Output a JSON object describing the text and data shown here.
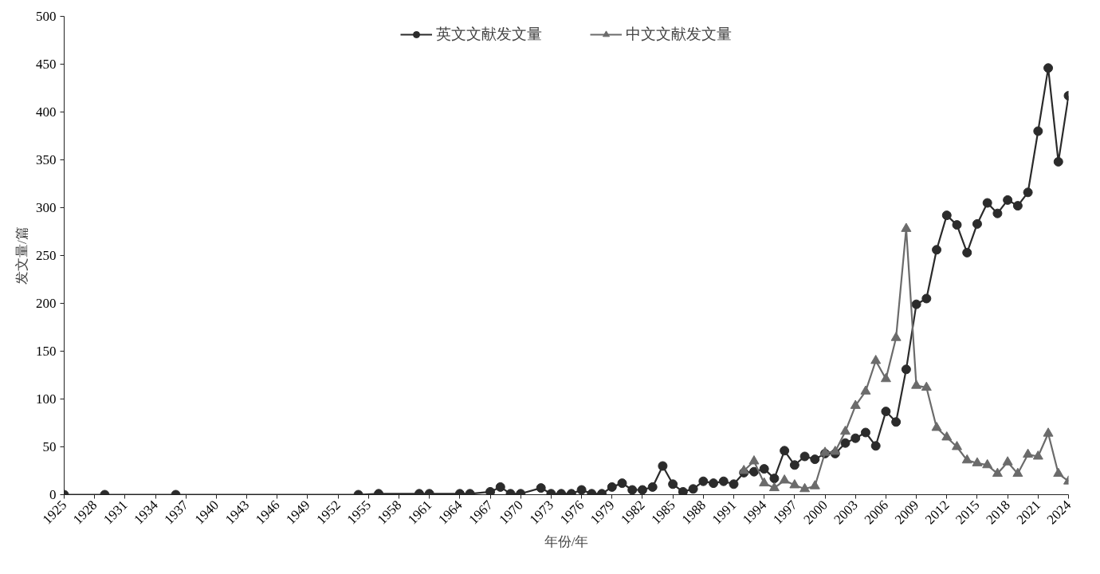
{
  "chart_data": {
    "type": "line",
    "xlabel": "年份/年",
    "ylabel": "发文量/篇",
    "xlim": [
      1925,
      2024
    ],
    "ylim": [
      0,
      500
    ],
    "xticks": [
      1925,
      1928,
      1931,
      1934,
      1937,
      1940,
      1943,
      1946,
      1949,
      1952,
      1955,
      1958,
      1961,
      1964,
      1967,
      1970,
      1973,
      1976,
      1979,
      1982,
      1985,
      1988,
      1991,
      1994,
      1997,
      2000,
      2003,
      2006,
      2009,
      2012,
      2015,
      2018,
      2021,
      2024
    ],
    "yticks": [
      0,
      50,
      100,
      150,
      200,
      250,
      300,
      350,
      400,
      450,
      500
    ],
    "grid": false,
    "legend": "top",
    "line_style": "solid",
    "series": [
      {
        "name": "英文文献发文量",
        "color": "#2b2b2b",
        "marker": "circle",
        "x": [
          1925,
          1929,
          1936,
          1954,
          1956,
          1960,
          1961,
          1964,
          1965,
          1967,
          1968,
          1969,
          1970,
          1972,
          1973,
          1974,
          1975,
          1976,
          1977,
          1978,
          1979,
          1980,
          1981,
          1982,
          1983,
          1984,
          1985,
          1986,
          1987,
          1988,
          1989,
          1990,
          1991,
          1992,
          1993,
          1994,
          1995,
          1996,
          1997,
          1998,
          1999,
          2000,
          2001,
          2002,
          2003,
          2004,
          2005,
          2006,
          2007,
          2008,
          2009,
          2010,
          2011,
          2012,
          2013,
          2014,
          2015,
          2016,
          2017,
          2018,
          2019,
          2020,
          2021,
          2022,
          2023,
          2024
        ],
        "values": [
          0,
          0,
          0,
          0,
          1,
          1,
          1,
          1,
          1,
          3,
          8,
          1,
          1,
          7,
          1,
          1,
          1,
          5,
          1,
          1,
          8,
          12,
          5,
          5,
          8,
          30,
          11,
          3,
          6,
          14,
          12,
          14,
          11,
          23,
          24,
          27,
          17,
          46,
          31,
          40,
          37,
          43,
          43,
          54,
          59,
          65,
          51,
          87,
          76,
          131,
          199,
          205,
          256,
          292,
          282,
          253,
          283,
          305,
          294,
          308,
          302,
          316,
          380,
          446,
          348,
          417
        ]
      },
      {
        "name": "中文文献发文量",
        "color": "#6b6b6b",
        "marker": "triangle",
        "x": [
          1992,
          1993,
          1994,
          1995,
          1996,
          1997,
          1998,
          1999,
          2000,
          2001,
          2002,
          2003,
          2004,
          2005,
          2006,
          2007,
          2008,
          2009,
          2010,
          2011,
          2012,
          2013,
          2014,
          2015,
          2016,
          2017,
          2018,
          2019,
          2020,
          2021,
          2022,
          2023,
          2024
        ],
        "values": [
          25,
          35,
          12,
          7,
          15,
          10,
          6,
          9,
          44,
          45,
          66,
          93,
          108,
          140,
          121,
          164,
          278,
          114,
          112,
          70,
          60,
          50,
          36,
          33,
          31,
          22,
          34,
          22,
          42,
          40,
          64,
          22,
          14
        ]
      }
    ]
  }
}
